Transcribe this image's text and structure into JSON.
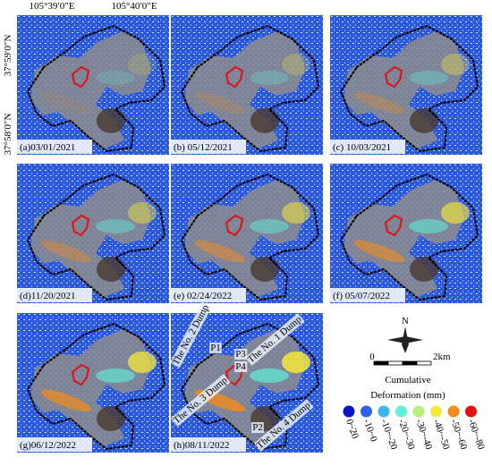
{
  "axes": {
    "x_labels": [
      "105°39′0″E",
      "105°40′0″E"
    ],
    "y_labels": [
      "37°59′0″N",
      "37°58′0″N"
    ]
  },
  "panels": [
    {
      "label": "(a)03/01/2021"
    },
    {
      "label": "(b) 05/12/2021"
    },
    {
      "label": "(c) 10/03/2021"
    },
    {
      "label": "(d)11/20/2021"
    },
    {
      "label": "(e) 02/24/2022"
    },
    {
      "label": "(f) 05/07/2022"
    },
    {
      "label": "(g)06/12/2022"
    },
    {
      "label": "(h)08/11/2022"
    }
  ],
  "annotations": [
    {
      "text": "The No. 2 Dump"
    },
    {
      "text": "P1"
    },
    {
      "text": "The No. 1 Dump"
    },
    {
      "text": "P3"
    },
    {
      "text": "P4"
    },
    {
      "text": "The No. 3 Dump"
    },
    {
      "text": "P2"
    },
    {
      "text": "The No. 4 Dump"
    }
  ],
  "scale_bar": {
    "north": "N",
    "start": "0",
    "end": "2km"
  },
  "legend": {
    "title_1": "Cumulative",
    "title_2": "Deformation (mm)",
    "items": [
      {
        "label": "0~20",
        "color": "#0a14c8"
      },
      {
        "label": "-10~0",
        "color": "#2f63e8"
      },
      {
        "label": "-10~-20",
        "color": "#38b8f0"
      },
      {
        "label": "-20~-30",
        "color": "#5ff0d8"
      },
      {
        "label": "-30~-40",
        "color": "#b8f07a"
      },
      {
        "label": "-40~-50",
        "color": "#f5e83a"
      },
      {
        "label": "-50~-60",
        "color": "#f58a1a"
      },
      {
        "label": "-60~-80",
        "color": "#e81010"
      }
    ]
  }
}
